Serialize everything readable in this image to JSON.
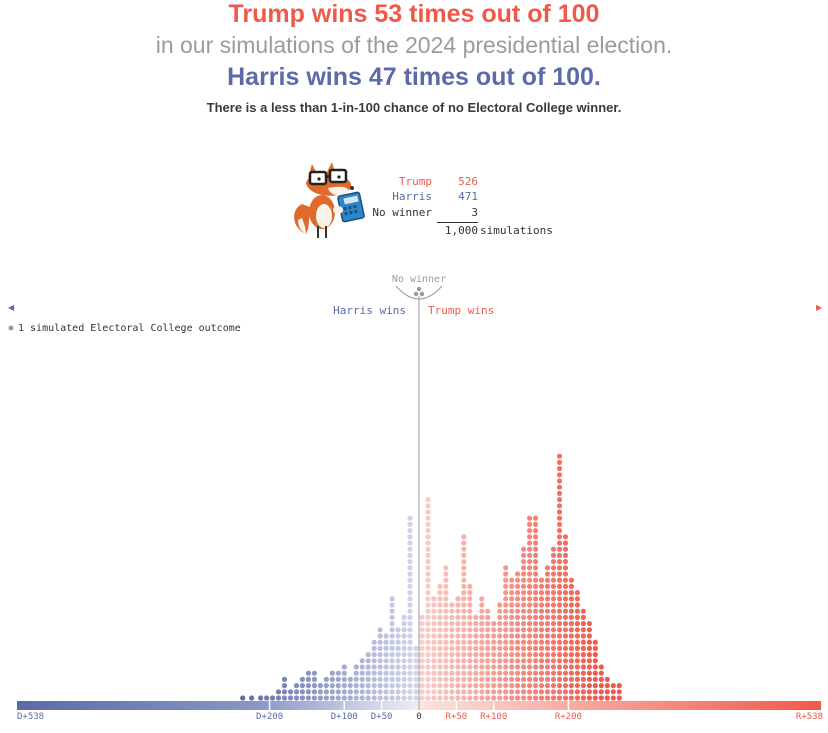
{
  "header": {
    "trump_line": "Trump wins 53 times out of 100",
    "middle_line": "in our simulations of the 2024 presidential election.",
    "harris_line": "Harris wins 47 times out of 100.",
    "subtitle": "There is a less than 1-in-100 chance of no Electoral College winner."
  },
  "tally": {
    "rows": [
      {
        "label": "Trump",
        "value": "526"
      },
      {
        "label": "Harris",
        "value": "471"
      },
      {
        "label": "No winner",
        "value": "3"
      }
    ],
    "total_value": "1,000",
    "total_label": "simulations"
  },
  "mascot": {
    "icon": "fox-with-glasses-and-calculator-icon"
  },
  "colors": {
    "trump": "#f0594a",
    "harris": "#5b6aa8",
    "harris_light": "#d3d8ec",
    "trump_light": "#f9cfc9",
    "neutral": "#9b9b9b"
  },
  "chart_data": {
    "type": "scatter",
    "subtype": "dot-histogram",
    "x_unit": "electoral vote margin (negative = Democratic, positive = Republican)",
    "x_range": [
      -538,
      538
    ],
    "bin_width": 8,
    "legend": "1 simulated Electoral College outcome",
    "side_labels": {
      "left": "Harris wins",
      "right": "Trump wins",
      "center": "No winner"
    },
    "tick_labels": [
      {
        "value": -538,
        "label": "D+538"
      },
      {
        "value": -200,
        "label": "D+200"
      },
      {
        "value": -100,
        "label": "D+100"
      },
      {
        "value": -50,
        "label": "D+50"
      },
      {
        "value": 0,
        "label": "0"
      },
      {
        "value": 50,
        "label": "R+50"
      },
      {
        "value": 100,
        "label": "R+100"
      },
      {
        "value": 200,
        "label": "R+200"
      },
      {
        "value": 538,
        "label": "R+538"
      }
    ],
    "tie_count": 3,
    "bins": [
      {
        "x": -240,
        "count": 1
      },
      {
        "x": -228,
        "count": 1
      },
      {
        "x": -216,
        "count": 1
      },
      {
        "x": -208,
        "count": 1
      },
      {
        "x": -200,
        "count": 1
      },
      {
        "x": -192,
        "count": 2
      },
      {
        "x": -184,
        "count": 4
      },
      {
        "x": -176,
        "count": 2
      },
      {
        "x": -168,
        "count": 3
      },
      {
        "x": -160,
        "count": 4
      },
      {
        "x": -152,
        "count": 5
      },
      {
        "x": -144,
        "count": 5
      },
      {
        "x": -136,
        "count": 3
      },
      {
        "x": -128,
        "count": 4
      },
      {
        "x": -120,
        "count": 5
      },
      {
        "x": -112,
        "count": 5
      },
      {
        "x": -104,
        "count": 6
      },
      {
        "x": -96,
        "count": 4
      },
      {
        "x": -88,
        "count": 6
      },
      {
        "x": -80,
        "count": 7
      },
      {
        "x": -72,
        "count": 8
      },
      {
        "x": -64,
        "count": 10
      },
      {
        "x": -56,
        "count": 12
      },
      {
        "x": -48,
        "count": 11
      },
      {
        "x": -40,
        "count": 17
      },
      {
        "x": -32,
        "count": 12
      },
      {
        "x": -24,
        "count": 14
      },
      {
        "x": -16,
        "count": 30
      },
      {
        "x": -8,
        "count": 9
      },
      {
        "x": 0,
        "count": 14
      },
      {
        "x": 8,
        "count": 33
      },
      {
        "x": 16,
        "count": 17
      },
      {
        "x": 24,
        "count": 19
      },
      {
        "x": 32,
        "count": 22
      },
      {
        "x": 40,
        "count": 16
      },
      {
        "x": 48,
        "count": 17
      },
      {
        "x": 56,
        "count": 27
      },
      {
        "x": 64,
        "count": 19
      },
      {
        "x": 72,
        "count": 14
      },
      {
        "x": 80,
        "count": 17
      },
      {
        "x": 88,
        "count": 15
      },
      {
        "x": 96,
        "count": 13
      },
      {
        "x": 104,
        "count": 16
      },
      {
        "x": 112,
        "count": 22
      },
      {
        "x": 120,
        "count": 20
      },
      {
        "x": 128,
        "count": 21
      },
      {
        "x": 136,
        "count": 25
      },
      {
        "x": 144,
        "count": 30
      },
      {
        "x": 152,
        "count": 30
      },
      {
        "x": 160,
        "count": 20
      },
      {
        "x": 168,
        "count": 22
      },
      {
        "x": 176,
        "count": 25
      },
      {
        "x": 184,
        "count": 40
      },
      {
        "x": 192,
        "count": 27
      },
      {
        "x": 200,
        "count": 20
      },
      {
        "x": 208,
        "count": 18
      },
      {
        "x": 216,
        "count": 15
      },
      {
        "x": 224,
        "count": 13
      },
      {
        "x": 232,
        "count": 10
      },
      {
        "x": 240,
        "count": 6
      },
      {
        "x": 248,
        "count": 4
      },
      {
        "x": 256,
        "count": 3
      },
      {
        "x": 264,
        "count": 3
      }
    ]
  }
}
